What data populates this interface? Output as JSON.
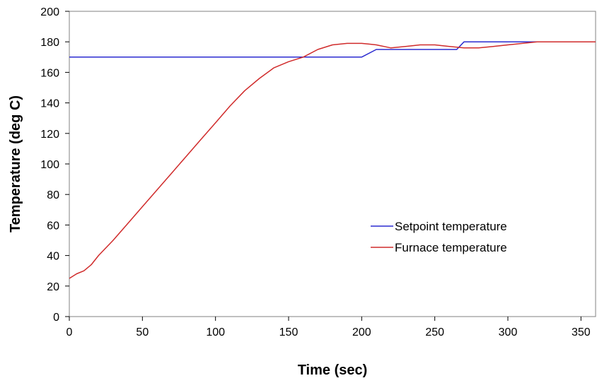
{
  "chart_data": {
    "type": "line",
    "title": "",
    "xlabel": "Time (sec)",
    "ylabel": "Temperature (deg C)",
    "xlim": [
      0,
      360
    ],
    "ylim": [
      0,
      200
    ],
    "xticks": [
      0,
      50,
      100,
      150,
      200,
      250,
      300,
      350
    ],
    "yticks": [
      0,
      20,
      40,
      60,
      80,
      100,
      120,
      140,
      160,
      180,
      200
    ],
    "grid": false,
    "legend_position": "center-right",
    "series": [
      {
        "name": "Setpoint temperature",
        "color": "#2b2bd0",
        "x": [
          0,
          200,
          210,
          260,
          265,
          270,
          320
        ],
        "y": [
          170,
          170,
          175,
          175,
          175,
          180,
          180
        ]
      },
      {
        "name": "Furnace temperature",
        "color": "#d02b2b",
        "x": [
          0,
          5,
          10,
          15,
          20,
          30,
          40,
          50,
          60,
          70,
          80,
          90,
          100,
          110,
          120,
          130,
          140,
          150,
          160,
          170,
          180,
          190,
          200,
          205,
          210,
          220,
          230,
          240,
          250,
          260,
          265,
          270,
          280,
          290,
          300,
          310,
          320,
          330,
          340,
          350,
          360
        ],
        "y": [
          25,
          28,
          30,
          34,
          40,
          50,
          61,
          72,
          83,
          94,
          105,
          116,
          127,
          138,
          148,
          156,
          163,
          167,
          170,
          175,
          178,
          179,
          179,
          178.5,
          178,
          176,
          177,
          178,
          178,
          177,
          176.5,
          176,
          176,
          177,
          178,
          179,
          180,
          180,
          180,
          180,
          180
        ]
      }
    ]
  }
}
